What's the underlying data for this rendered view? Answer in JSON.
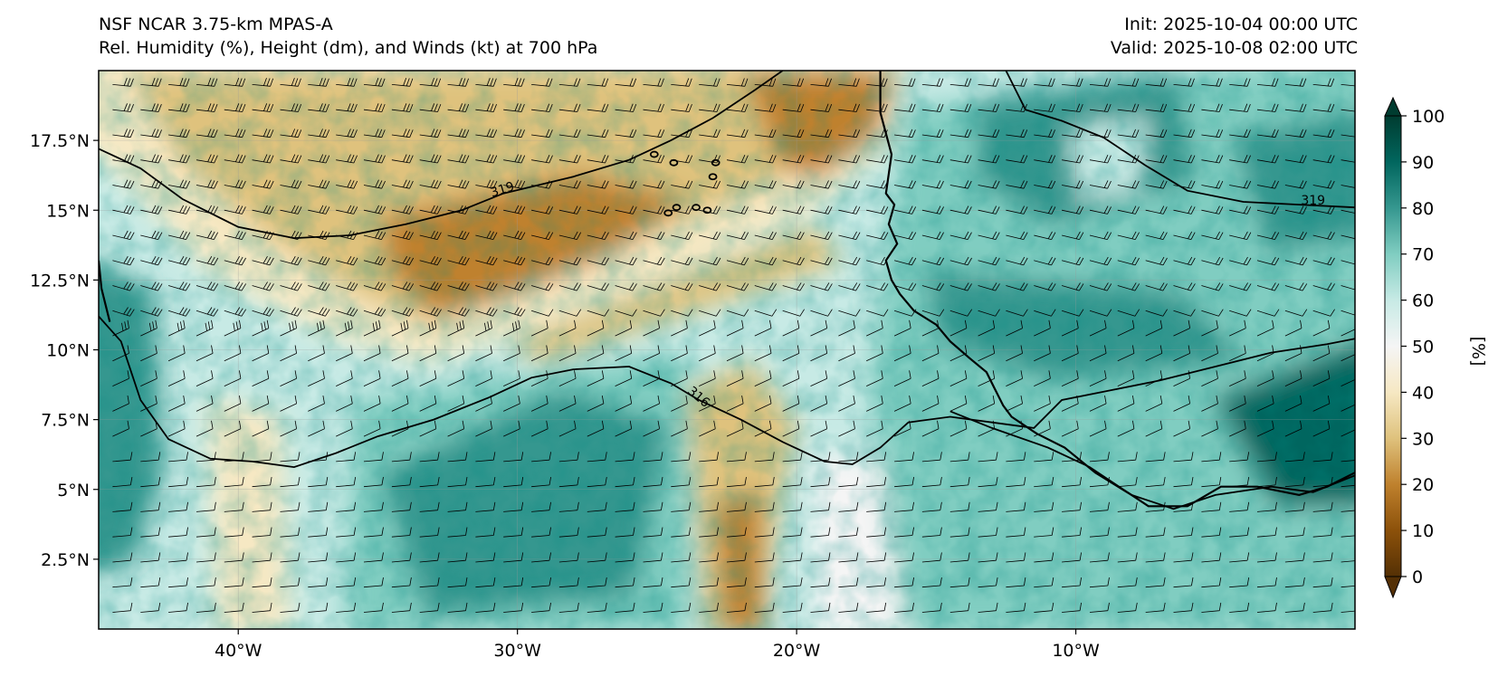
{
  "header": {
    "model_name": "NSF NCAR 3.75-km MPAS-A",
    "fields_description": "Rel. Humidity (%), Height (dm), and Winds (kt) at 700 hPa",
    "init_time": "Init: 2025-10-04 00:00 UTC",
    "valid_time": "Valid: 2025-10-08 02:00 UTC"
  },
  "map": {
    "extent": {
      "lon_min": -45,
      "lon_max": 0,
      "lat_min": 0,
      "lat_max": 20
    },
    "x_ticks": [
      {
        "lon": -40,
        "label": "40°W"
      },
      {
        "lon": -30,
        "label": "30°W"
      },
      {
        "lon": -20,
        "label": "20°W"
      },
      {
        "lon": -10,
        "label": "10°W"
      }
    ],
    "y_ticks": [
      {
        "lat": 17.5,
        "label": "17.5°N"
      },
      {
        "lat": 15,
        "label": "15°N"
      },
      {
        "lat": 12.5,
        "label": "12.5°N"
      },
      {
        "lat": 10,
        "label": "10°N"
      },
      {
        "lat": 7.5,
        "label": "7.5°N"
      },
      {
        "lat": 5,
        "label": "5°N"
      },
      {
        "lat": 2.5,
        "label": "2.5°N"
      }
    ],
    "contour_labels": [
      {
        "text": "319",
        "lon": -30.5,
        "lat": 15.6,
        "rotate": -17
      },
      {
        "text": "319",
        "lon": -1.5,
        "lat": 15.2,
        "rotate": 0
      },
      {
        "text": "316",
        "lon": -23.6,
        "lat": 8.2,
        "rotate": 40
      }
    ],
    "height_contours_dm": [
      {
        "value": 319,
        "points": [
          [
            -45,
            17.2
          ],
          [
            -43.5,
            16.5
          ],
          [
            -42,
            15.4
          ],
          [
            -40,
            14.4
          ],
          [
            -38,
            14.0
          ],
          [
            -36,
            14.1
          ],
          [
            -34,
            14.5
          ],
          [
            -32,
            15.0
          ],
          [
            -30.5,
            15.6
          ],
          [
            -28,
            16.2
          ],
          [
            -26,
            16.8
          ],
          [
            -24.5,
            17.5
          ],
          [
            -23,
            18.3
          ],
          [
            -21.5,
            19.3
          ],
          [
            -20.5,
            20
          ]
        ]
      },
      {
        "value": 319,
        "points": [
          [
            -12.5,
            20
          ],
          [
            -11.8,
            18.6
          ],
          [
            -10.5,
            18.2
          ],
          [
            -9,
            17.6
          ],
          [
            -7.5,
            16.6
          ],
          [
            -6,
            15.7
          ],
          [
            -4,
            15.3
          ],
          [
            -2,
            15.2
          ],
          [
            0,
            15.1
          ]
        ]
      },
      {
        "value": 316,
        "points": [
          [
            -45,
            11.2
          ],
          [
            -44.2,
            10.3
          ],
          [
            -43.5,
            8.2
          ],
          [
            -42.5,
            6.8
          ],
          [
            -41,
            6.1
          ],
          [
            -39.5,
            6.0
          ],
          [
            -38,
            5.8
          ],
          [
            -36.5,
            6.3
          ],
          [
            -35,
            6.9
          ],
          [
            -33,
            7.5
          ],
          [
            -31,
            8.3
          ],
          [
            -29.5,
            9.0
          ],
          [
            -28,
            9.3
          ],
          [
            -26,
            9.4
          ],
          [
            -24.5,
            8.8
          ],
          [
            -23.5,
            8.2
          ],
          [
            -22,
            7.5
          ],
          [
            -20.5,
            6.7
          ],
          [
            -19,
            6.0
          ],
          [
            -18,
            5.9
          ],
          [
            -17,
            6.5
          ],
          [
            -16,
            7.4
          ],
          [
            -14.5,
            7.6
          ],
          [
            -13,
            7.4
          ],
          [
            -11.5,
            7.2
          ],
          [
            -10.5,
            8.2
          ],
          [
            -9,
            8.5
          ],
          [
            -7,
            8.9
          ],
          [
            -5,
            9.4
          ],
          [
            -3,
            9.9
          ],
          [
            -1,
            10.2
          ],
          [
            0,
            10.4
          ]
        ]
      },
      {
        "value": 316,
        "points": [
          [
            -14.5,
            7.8
          ],
          [
            -13,
            7.2
          ],
          [
            -11,
            6.5
          ],
          [
            -9.5,
            5.8
          ],
          [
            -8,
            4.8
          ],
          [
            -6.5,
            4.3
          ],
          [
            -5,
            4.8
          ],
          [
            -3,
            5.1
          ],
          [
            -1.5,
            4.9
          ],
          [
            0,
            5.5
          ]
        ]
      }
    ],
    "coastline": [
      [
        -17.0,
        20
      ],
      [
        -17.0,
        18.5
      ],
      [
        -16.6,
        17.0
      ],
      [
        -16.8,
        15.6
      ],
      [
        -16.5,
        15.2
      ],
      [
        -16.7,
        14.5
      ],
      [
        -16.4,
        13.8
      ],
      [
        -16.8,
        13.2
      ],
      [
        -16.6,
        12.5
      ],
      [
        -16.3,
        12.0
      ],
      [
        -15.8,
        11.4
      ],
      [
        -15.0,
        10.9
      ],
      [
        -14.5,
        10.3
      ],
      [
        -13.8,
        9.7
      ],
      [
        -13.2,
        9.2
      ],
      [
        -12.9,
        8.6
      ],
      [
        -12.6,
        8.0
      ],
      [
        -12.3,
        7.6
      ],
      [
        -11.4,
        7.0
      ],
      [
        -10.4,
        6.5
      ],
      [
        -9.3,
        5.6
      ],
      [
        -8.0,
        4.8
      ],
      [
        -7.4,
        4.4
      ],
      [
        -6.0,
        4.4
      ],
      [
        -4.8,
        5.1
      ],
      [
        -3.5,
        5.1
      ],
      [
        -2.0,
        4.8
      ],
      [
        -1.0,
        5.1
      ],
      [
        0,
        5.6
      ]
    ],
    "cape_verde_islands": [
      [
        -25.1,
        17.0
      ],
      [
        -24.4,
        16.7
      ],
      [
        -23.0,
        16.2
      ],
      [
        -22.9,
        16.7
      ],
      [
        -24.6,
        14.9
      ],
      [
        -24.3,
        15.1
      ],
      [
        -23.6,
        15.1
      ],
      [
        -23.2,
        15.0
      ]
    ],
    "brazil_coast": [
      [
        -45,
        13.2
      ],
      [
        -44.9,
        12.2
      ],
      [
        -44.6,
        11.0
      ]
    ]
  },
  "colorbar": {
    "label": "[%]",
    "ticks": [
      0,
      10,
      20,
      30,
      40,
      50,
      60,
      70,
      80,
      90,
      100
    ],
    "colormap": [
      "#543005",
      "#8c510a",
      "#bf812d",
      "#dfc27d",
      "#f6e8c3",
      "#f5f5f5",
      "#c7eae5",
      "#80cdc1",
      "#35978f",
      "#01665e",
      "#003c30"
    ]
  },
  "colors": {
    "dry": "#bf812d",
    "moist": "#01665e",
    "neutral": "#f5f5f5",
    "contour": "#000000"
  }
}
